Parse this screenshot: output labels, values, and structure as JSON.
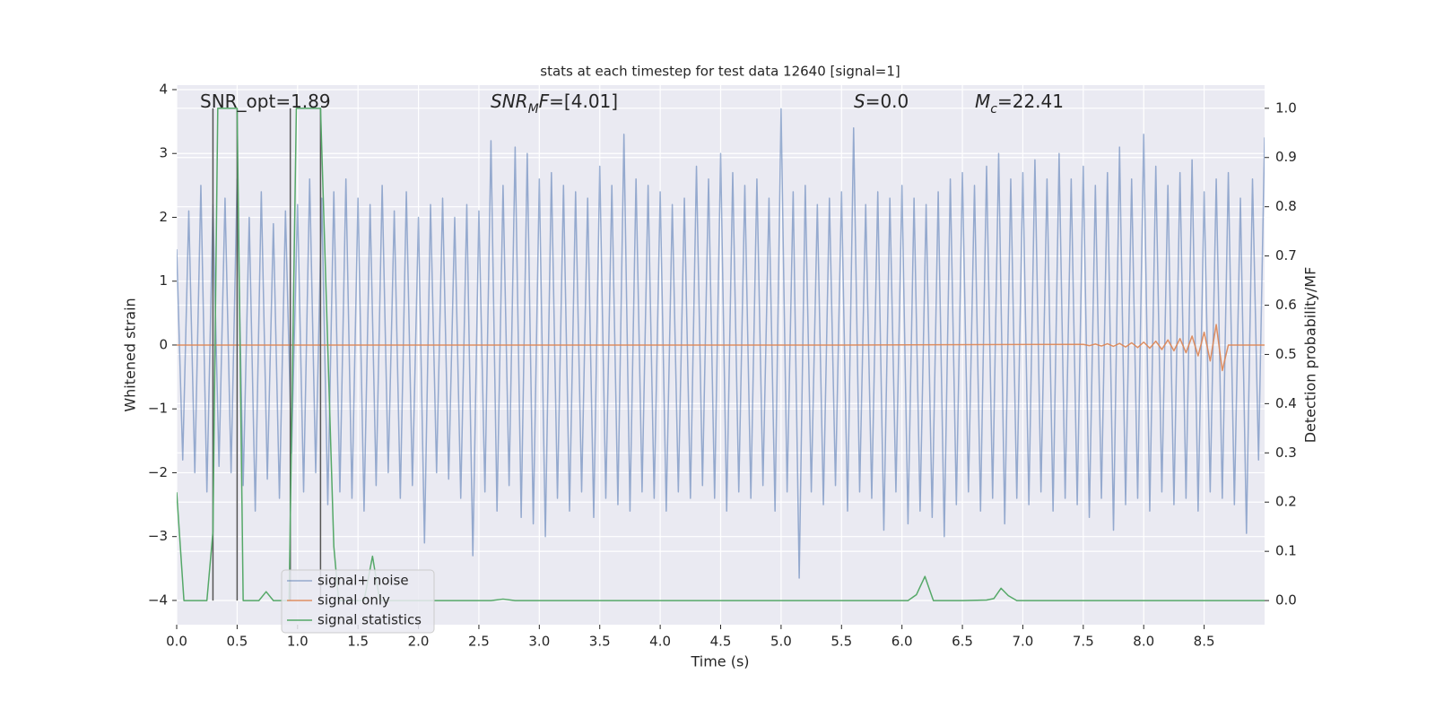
{
  "chart_data": {
    "type": "line",
    "title": "stats at each timestep for test data 12640 [signal=1]",
    "xlabel": "Time (s)",
    "ylabel": "Whitened strain",
    "y2label": "Detection probability/MF",
    "xlim": [
      0,
      9.0
    ],
    "ylim": [
      -4.38,
      4.07
    ],
    "y2lim": [
      -0.049,
      1.047
    ],
    "xticks": [
      {
        "value": 0,
        "label": "0.0"
      },
      0.5,
      {
        "value": 1,
        "label": "1.0"
      },
      1.5,
      {
        "value": 2,
        "label": "2.0"
      },
      2.5,
      {
        "value": 3,
        "label": "3.0"
      },
      3.5,
      {
        "value": 4,
        "label": "4.0"
      },
      4.5,
      {
        "value": 5,
        "label": "5.0"
      },
      5.5,
      {
        "value": 6,
        "label": "6.0"
      },
      6.5,
      {
        "value": 7,
        "label": "7.0"
      },
      7.5,
      {
        "value": 8,
        "label": "8.0"
      },
      8.5
    ],
    "yticks": [
      {
        "value": -4,
        "label": "−4"
      },
      {
        "value": -3,
        "label": "−3"
      },
      {
        "value": -2,
        "label": "−2"
      },
      {
        "value": -1,
        "label": "−1"
      },
      0,
      1,
      2,
      3,
      4
    ],
    "y2ticks": [
      {
        "value": 0,
        "label": "0.0"
      },
      0.1,
      0.2,
      0.3,
      0.4,
      0.5,
      0.6,
      0.7,
      0.8,
      0.9,
      {
        "value": 1,
        "label": "1.0"
      }
    ],
    "grid": true,
    "legend_loc": "lower left",
    "series": [
      {
        "name": "signal+ noise",
        "color": "#4c72b0",
        "alpha": 0.55,
        "x": [
          0,
          0.05,
          0.1,
          0.15,
          0.2,
          0.25,
          0.3,
          0.35,
          0.4,
          0.45,
          0.5,
          0.55,
          0.6,
          0.65,
          0.7,
          0.75,
          0.8,
          0.85,
          0.9,
          0.95,
          1.0,
          1.05,
          1.1,
          1.15,
          1.2,
          1.25,
          1.3,
          1.35,
          1.4,
          1.45,
          1.5,
          1.55,
          1.6,
          1.65,
          1.7,
          1.75,
          1.8,
          1.85,
          1.9,
          1.95,
          2.0,
          2.05,
          2.1,
          2.15,
          2.2,
          2.25,
          2.3,
          2.35,
          2.4,
          2.45,
          2.5,
          2.55,
          2.6,
          2.65,
          2.7,
          2.75,
          2.8,
          2.85,
          2.9,
          2.95,
          3.0,
          3.05,
          3.1,
          3.15,
          3.2,
          3.25,
          3.3,
          3.35,
          3.4,
          3.45,
          3.5,
          3.55,
          3.6,
          3.65,
          3.7,
          3.75,
          3.8,
          3.85,
          3.9,
          3.95,
          4.0,
          4.05,
          4.1,
          4.15,
          4.2,
          4.25,
          4.3,
          4.35,
          4.4,
          4.45,
          4.5,
          4.55,
          4.6,
          4.65,
          4.7,
          4.75,
          4.8,
          4.85,
          4.9,
          4.95,
          5.0,
          5.05,
          5.1,
          5.15,
          5.2,
          5.25,
          5.3,
          5.35,
          5.4,
          5.45,
          5.5,
          5.55,
          5.6,
          5.65,
          5.7,
          5.75,
          5.8,
          5.85,
          5.9,
          5.95,
          6.0,
          6.05,
          6.1,
          6.15,
          6.2,
          6.25,
          6.3,
          6.35,
          6.4,
          6.45,
          6.5,
          6.55,
          6.6,
          6.65,
          6.7,
          6.75,
          6.8,
          6.85,
          6.9,
          6.95,
          7.0,
          7.05,
          7.1,
          7.15,
          7.2,
          7.25,
          7.3,
          7.35,
          7.4,
          7.45,
          7.5,
          7.55,
          7.6,
          7.65,
          7.7,
          7.75,
          7.8,
          7.85,
          7.9,
          7.95,
          8.0,
          8.05,
          8.1,
          8.15,
          8.2,
          8.25,
          8.3,
          8.35,
          8.4,
          8.45,
          8.5,
          8.55,
          8.6,
          8.65,
          8.7,
          8.75,
          8.8,
          8.85,
          8.9,
          8.95,
          9.0
        ],
        "values": [
          1.5,
          -1.8,
          2.1,
          -2.0,
          2.5,
          -2.3,
          2.2,
          -1.9,
          2.3,
          -2.0,
          2.6,
          -2.2,
          2.0,
          -2.6,
          2.4,
          -2.1,
          1.9,
          -2.4,
          2.1,
          -1.7,
          2.2,
          -2.3,
          2.6,
          -2.0,
          2.3,
          -2.5,
          2.4,
          -2.3,
          2.6,
          -2.4,
          2.3,
          -2.6,
          2.2,
          -2.2,
          2.5,
          -2.0,
          2.1,
          -2.4,
          2.4,
          -2.2,
          2.0,
          -3.1,
          2.2,
          -2.0,
          2.3,
          -2.1,
          2.0,
          -2.4,
          2.2,
          -3.3,
          2.1,
          -2.3,
          3.2,
          -2.6,
          2.5,
          -2.2,
          3.1,
          -2.7,
          3.0,
          -2.8,
          2.6,
          -3.0,
          2.7,
          -2.4,
          2.5,
          -2.6,
          2.4,
          -2.3,
          2.3,
          -2.7,
          2.8,
          -2.4,
          2.5,
          -2.5,
          3.3,
          -2.6,
          2.6,
          -2.3,
          2.5,
          -2.4,
          2.4,
          -2.6,
          2.2,
          -2.3,
          2.3,
          -2.4,
          2.8,
          -2.2,
          2.6,
          -2.4,
          3.0,
          -2.6,
          2.7,
          -2.3,
          2.5,
          -2.4,
          2.6,
          -2.2,
          2.3,
          -2.6,
          3.7,
          -2.3,
          2.4,
          -3.65,
          2.5,
          -2.3,
          2.2,
          -2.5,
          2.3,
          -2.2,
          2.4,
          -2.6,
          3.4,
          -2.3,
          2.2,
          -2.4,
          2.4,
          -2.9,
          2.3,
          -2.3,
          2.5,
          -2.8,
          2.3,
          -2.6,
          2.2,
          -2.7,
          2.4,
          -3.0,
          2.6,
          -2.5,
          2.7,
          -2.3,
          2.5,
          -2.6,
          2.8,
          -2.4,
          3.0,
          -2.8,
          2.6,
          -2.4,
          2.7,
          -2.5,
          2.9,
          -2.3,
          2.6,
          -2.6,
          3.0,
          -2.4,
          2.6,
          -2.5,
          2.8,
          -2.7,
          2.5,
          -2.4,
          2.7,
          -2.9,
          3.1,
          -2.5,
          2.6,
          -2.4,
          3.3,
          -2.6,
          2.8,
          -2.3,
          2.5,
          -2.5,
          2.7,
          -2.4,
          2.9,
          -2.6,
          2.4,
          -2.3,
          2.6,
          -2.4,
          2.7,
          -2.5,
          2.3,
          -2.95,
          2.6,
          -1.8,
          3.25
        ]
      },
      {
        "name": "signal only",
        "color": "#dd8452",
        "alpha": 0.9,
        "x": [
          0,
          5.5,
          7.5,
          7.55,
          7.6,
          7.65,
          7.7,
          7.75,
          7.8,
          7.85,
          7.9,
          7.95,
          8.0,
          8.05,
          8.1,
          8.15,
          8.2,
          8.25,
          8.3,
          8.35,
          8.4,
          8.45,
          8.5,
          8.55,
          8.6,
          8.65,
          8.7,
          9.0
        ],
        "values": [
          0,
          0,
          0.01,
          -0.01,
          0.015,
          -0.015,
          0.02,
          -0.02,
          0.025,
          -0.03,
          0.035,
          -0.04,
          0.045,
          -0.05,
          0.06,
          -0.07,
          0.08,
          -0.09,
          0.1,
          -0.12,
          0.14,
          -0.17,
          0.2,
          -0.25,
          0.32,
          -0.4,
          0,
          0
        ]
      },
      {
        "name": "signal statistics",
        "color": "#55a868",
        "alpha": 1,
        "axis": "y2",
        "x": [
          0.0,
          0.06,
          0.25,
          0.3,
          0.34,
          0.5,
          0.55,
          0.62,
          0.68,
          0.74,
          0.8,
          0.88,
          0.93,
          0.99,
          1.19,
          1.3,
          1.34,
          1.55,
          1.62,
          1.68,
          2.6,
          2.7,
          2.8,
          6.05,
          6.12,
          6.19,
          6.26,
          6.5,
          6.7,
          6.76,
          6.82,
          6.88,
          6.95,
          9.0
        ],
        "values": [
          0.22,
          0.0,
          0.0,
          0.14,
          1.0,
          1.0,
          0.0,
          0.0,
          0.0,
          0.018,
          0.0,
          0.0,
          0.0,
          1.0,
          1.0,
          0.11,
          0.0,
          0.0,
          0.09,
          0.0,
          0.0,
          0.003,
          0.0,
          0.0,
          0.012,
          0.049,
          0.0,
          0.0,
          0.001,
          0.004,
          0.025,
          0.01,
          0.0,
          0.0
        ]
      }
    ],
    "vlines": {
      "color": "#555555",
      "axis": "y2",
      "from": 0,
      "to": 1,
      "x": [
        0.3,
        0.5,
        0.94,
        1.19
      ]
    },
    "annotations": [
      [
        {
          "text": "SNR_opt=1.89"
        }
      ],
      [
        {
          "text": "SNR",
          "style": "italic"
        },
        {
          "text": "M",
          "style": "italic-sub"
        },
        {
          "text": "F",
          "style": "italic"
        },
        {
          "text": "=[4.01]"
        }
      ],
      [
        {
          "text": "S",
          "style": "italic"
        },
        {
          "text": "=0.0"
        }
      ],
      [
        {
          "text": "M",
          "style": "italic"
        },
        {
          "text": "c",
          "style": "italic-sub"
        },
        {
          "text": "=22.41"
        }
      ]
    ]
  }
}
